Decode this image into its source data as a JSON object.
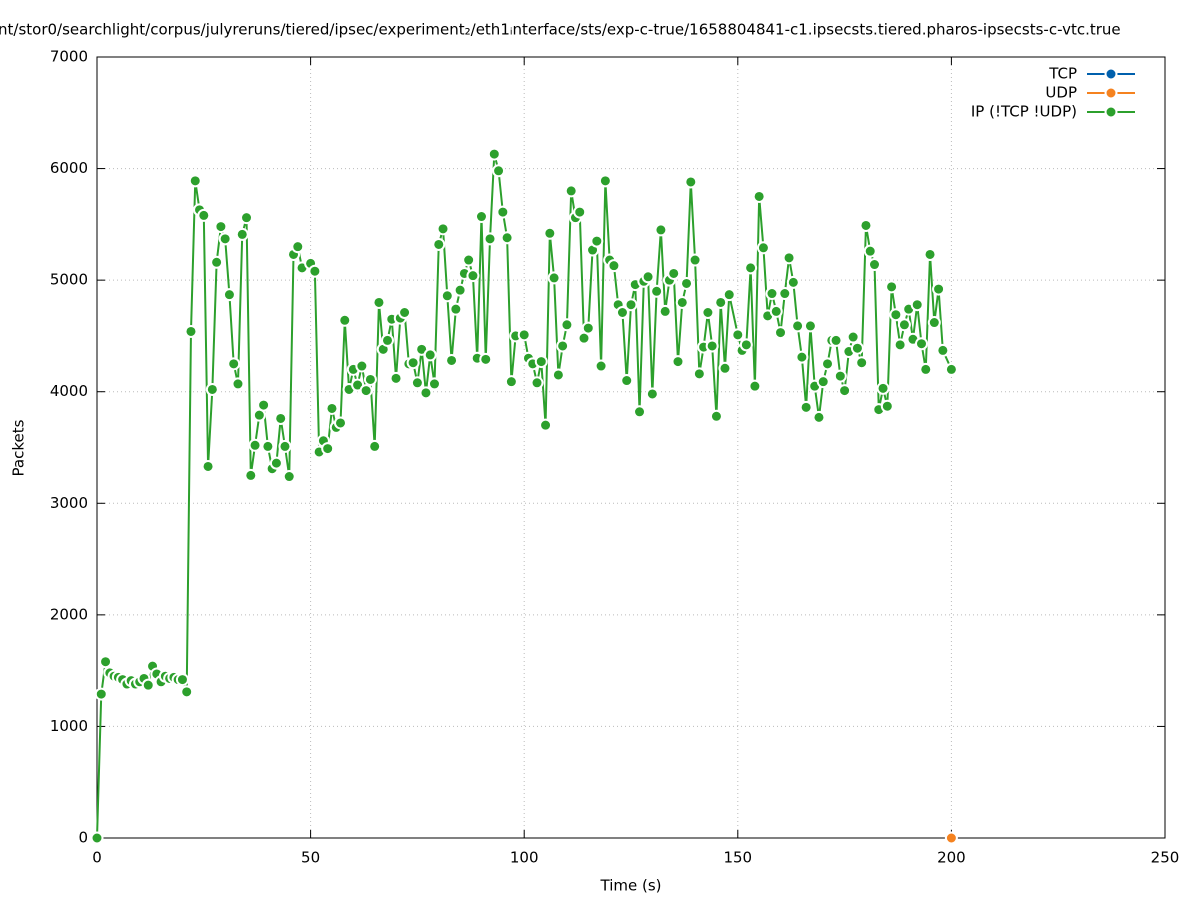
{
  "chart_data": {
    "type": "line",
    "title": "nt/stor0/searchlight/corpus/julyreruns/tiered/ipsec/experiment₂/eth1ᵢnterface/sts/exp-c-true/1658804841-c1.ipsecsts.tiered.pharos-ipsecsts-c-vtc.true",
    "xlabel": "Time (s)",
    "ylabel": "Packets",
    "xlim": [
      0,
      250
    ],
    "ylim": [
      0,
      7000
    ],
    "xticks": [
      0,
      50,
      100,
      150,
      200,
      250
    ],
    "yticks": [
      0,
      1000,
      2000,
      3000,
      4000,
      5000,
      6000,
      7000
    ],
    "grid": true,
    "legend": "upper right",
    "series": [
      {
        "name": "TCP",
        "color": "#0060ad",
        "x": [],
        "values": []
      },
      {
        "name": "UDP",
        "color": "#f5821f",
        "x": [
          200
        ],
        "values": [
          0
        ]
      },
      {
        "name": "IP (!TCP  !UDP)",
        "color": "#2ca02c",
        "x": [
          0,
          1,
          2,
          3,
          4,
          5,
          6,
          7,
          8,
          9,
          10,
          11,
          12,
          13,
          14,
          15,
          16,
          17,
          18,
          19,
          20,
          21,
          22,
          23,
          24,
          25,
          26,
          27,
          28,
          29,
          30,
          31,
          32,
          33,
          34,
          35,
          36,
          37,
          38,
          39,
          40,
          41,
          42,
          43,
          44,
          45,
          46,
          47,
          48,
          50,
          51,
          52,
          53,
          54,
          55,
          56,
          57,
          58,
          59,
          60,
          61,
          62,
          63,
          64,
          65,
          66,
          67,
          68,
          69,
          70,
          71,
          72,
          73,
          74,
          75,
          76,
          77,
          78,
          79,
          80,
          81,
          82,
          83,
          84,
          85,
          86,
          87,
          88,
          89,
          90,
          91,
          92,
          93,
          94,
          95,
          96,
          97,
          98,
          100,
          101,
          102,
          103,
          104,
          105,
          106,
          107,
          108,
          109,
          110,
          111,
          112,
          113,
          114,
          115,
          116,
          117,
          118,
          119,
          120,
          121,
          122,
          123,
          124,
          125,
          126,
          127,
          128,
          129,
          130,
          131,
          132,
          133,
          134,
          135,
          136,
          137,
          138,
          139,
          140,
          141,
          142,
          143,
          144,
          145,
          146,
          147,
          148,
          150,
          151,
          152,
          153,
          154,
          155,
          156,
          157,
          158,
          159,
          160,
          161,
          162,
          163,
          164,
          165,
          166,
          167,
          168,
          169,
          170,
          171,
          172,
          173,
          174,
          175,
          176,
          177,
          178,
          179,
          180,
          181,
          182,
          183,
          184,
          185,
          186,
          187,
          188,
          189,
          190,
          191,
          192,
          193,
          194,
          195,
          196,
          197,
          198,
          200
        ],
        "values": [
          0,
          1290,
          1580,
          1480,
          1450,
          1440,
          1420,
          1380,
          1410,
          1380,
          1400,
          1430,
          1370,
          1540,
          1470,
          1400,
          1450,
          1430,
          1440,
          1420,
          1420,
          1310,
          4540,
          5890,
          5630,
          5580,
          3330,
          4020,
          5160,
          5480,
          5370,
          4870,
          4250,
          4070,
          5410,
          5560,
          3250,
          3520,
          3790,
          3880,
          3510,
          3310,
          3360,
          3760,
          3510,
          3240,
          5230,
          5300,
          5110,
          5150,
          5080,
          3460,
          3560,
          3490,
          3850,
          3680,
          3720,
          4640,
          4020,
          4200,
          4060,
          4230,
          4010,
          4110,
          3510,
          4800,
          4380,
          4460,
          4650,
          4120,
          4660,
          4710,
          4250,
          4260,
          4080,
          4380,
          3990,
          4330,
          4070,
          5320,
          5460,
          4860,
          4280,
          4740,
          4910,
          5060,
          5180,
          5040,
          4300,
          5570,
          4290,
          5370,
          6130,
          5980,
          5610,
          5380,
          4090,
          4500,
          4510,
          4300,
          4250,
          4080,
          4270,
          3700,
          5420,
          5020,
          4150,
          4410,
          4600,
          5800,
          5560,
          5610,
          4480,
          4570,
          5270,
          5350,
          4230,
          5890,
          5180,
          5130,
          4780,
          4710,
          4100,
          4780,
          4960,
          3820,
          4990,
          5030,
          3980,
          4900,
          5450,
          4720,
          5000,
          5060,
          4270,
          4800,
          4970,
          5880,
          5180,
          4160,
          4400,
          4710,
          4410,
          3780,
          4800,
          4210,
          4870,
          4510,
          4370,
          4420,
          5110,
          4050,
          5750,
          5290,
          4680,
          4880,
          4720,
          4530,
          4880,
          5200,
          4980,
          4590,
          4310,
          3860,
          4590,
          4050,
          3770,
          4090,
          4250,
          4460,
          4460,
          4140,
          4010,
          4360,
          4490,
          4390,
          4260,
          5490,
          5260,
          5140,
          3840,
          4030,
          3870,
          4940,
          4690,
          4420,
          4600,
          4740,
          4470,
          4780,
          4430,
          4200,
          5230,
          4620,
          4920,
          4370,
          4200
        ]
      }
    ]
  }
}
